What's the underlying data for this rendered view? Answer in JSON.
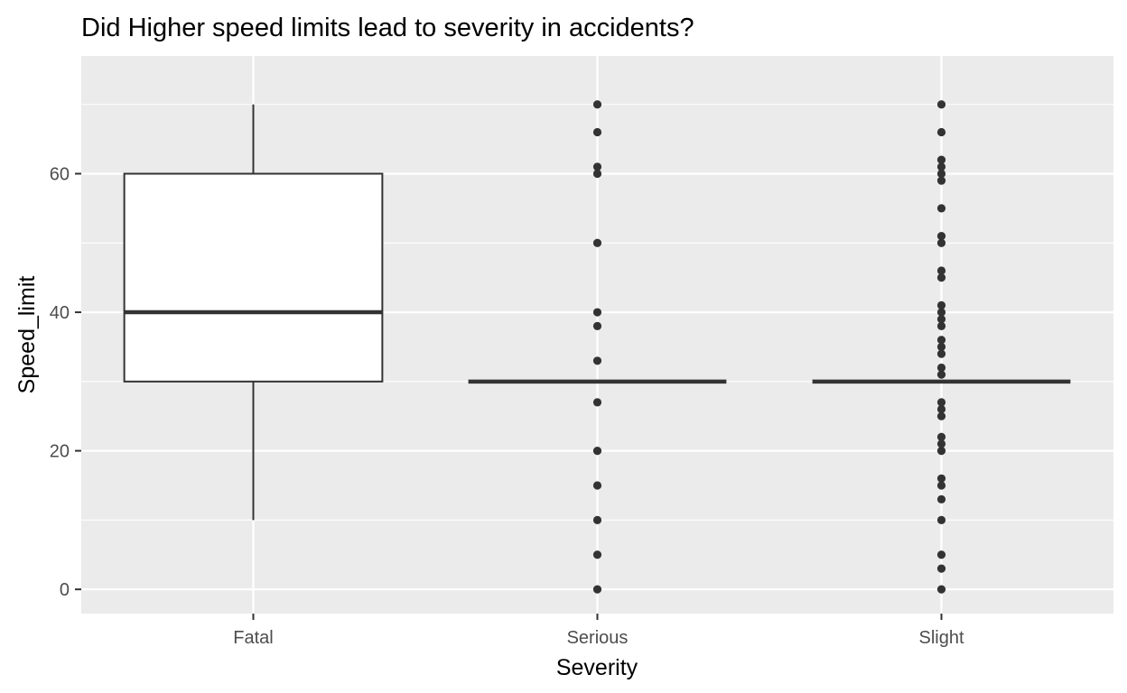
{
  "chart_data": {
    "type": "boxplot",
    "title": "Did Higher speed limits lead to severity in accidents?",
    "xlabel": "Severity",
    "ylabel": "Speed_limit",
    "ylim": [
      -3.5,
      77
    ],
    "yticks": [
      0,
      20,
      40,
      60
    ],
    "grid": true,
    "legend": "none",
    "colors": {
      "panel": "#ebebeb",
      "grid": "#ffffff",
      "box_fill": "#ffffff",
      "box_line": "#333333",
      "outlier": "#333333",
      "tick_text": "#4d4d4d",
      "tick_mark": "#333333"
    },
    "categories": [
      "Fatal",
      "Serious",
      "Slight"
    ],
    "boxes": [
      {
        "category": "Fatal",
        "min": 10,
        "q1": 30,
        "median": 40,
        "q3": 60,
        "max": 70,
        "outliers": []
      },
      {
        "category": "Serious",
        "min": 30,
        "q1": 30,
        "median": 30,
        "q3": 30,
        "max": 30,
        "outliers": [
          0,
          5,
          10,
          15,
          20,
          27,
          33,
          38,
          40,
          50,
          60,
          61,
          66,
          70
        ]
      },
      {
        "category": "Slight",
        "min": 30,
        "q1": 30,
        "median": 30,
        "q3": 30,
        "max": 30,
        "outliers": [
          0,
          3,
          5,
          10,
          13,
          15,
          16,
          20,
          21,
          22,
          25,
          26,
          27,
          31,
          32,
          34,
          35,
          36,
          38,
          39,
          40,
          41,
          45,
          46,
          50,
          51,
          55,
          59,
          60,
          61,
          62,
          66,
          70
        ]
      }
    ]
  }
}
